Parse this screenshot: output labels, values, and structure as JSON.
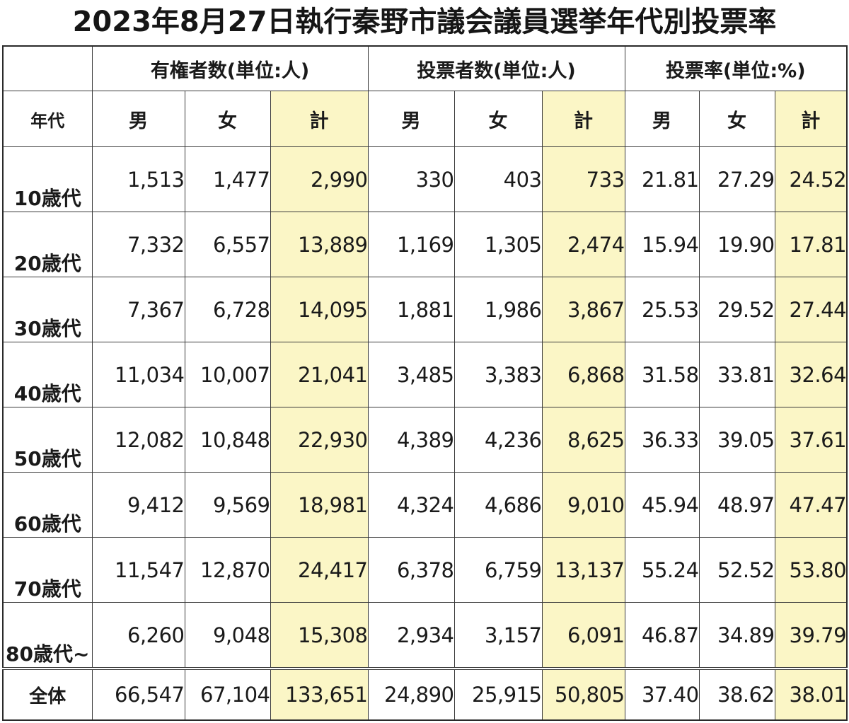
{
  "title": "2023年8月27日執行秦野市議会議員選挙年代別投票率",
  "colors": {
    "highlight": "#fbf6c6",
    "border": "#3a3a3a",
    "text": "#1a1a1a"
  },
  "header": {
    "groups": [
      "有権者数(単位:人)",
      "投票者数(単位:人)",
      "投票率(単位:%)"
    ],
    "age_label": "年代",
    "sub": [
      "男",
      "女",
      "計",
      "男",
      "女",
      "計",
      "男",
      "女",
      "計"
    ]
  },
  "rows": [
    {
      "age": "10歳代",
      "values": [
        "1,513",
        "1,477",
        "2,990",
        "330",
        "403",
        "733",
        "21.81",
        "27.29",
        "24.52"
      ]
    },
    {
      "age": "20歳代",
      "values": [
        "7,332",
        "6,557",
        "13,889",
        "1,169",
        "1,305",
        "2,474",
        "15.94",
        "19.90",
        "17.81"
      ]
    },
    {
      "age": "30歳代",
      "values": [
        "7,367",
        "6,728",
        "14,095",
        "1,881",
        "1,986",
        "3,867",
        "25.53",
        "29.52",
        "27.44"
      ]
    },
    {
      "age": "40歳代",
      "values": [
        "11,034",
        "10,007",
        "21,041",
        "3,485",
        "3,383",
        "6,868",
        "31.58",
        "33.81",
        "32.64"
      ]
    },
    {
      "age": "50歳代",
      "values": [
        "12,082",
        "10,848",
        "22,930",
        "4,389",
        "4,236",
        "8,625",
        "36.33",
        "39.05",
        "37.61"
      ]
    },
    {
      "age": "60歳代",
      "values": [
        "9,412",
        "9,569",
        "18,981",
        "4,324",
        "4,686",
        "9,010",
        "45.94",
        "48.97",
        "47.47"
      ]
    },
    {
      "age": "70歳代",
      "values": [
        "11,547",
        "12,870",
        "24,417",
        "6,378",
        "6,759",
        "13,137",
        "55.24",
        "52.52",
        "53.80"
      ]
    },
    {
      "age": "80歳代~",
      "values": [
        "6,260",
        "9,048",
        "15,308",
        "2,934",
        "3,157",
        "6,091",
        "46.87",
        "34.89",
        "39.79"
      ]
    }
  ],
  "total": {
    "age": "全体",
    "values": [
      "66,547",
      "67,104",
      "133,651",
      "24,890",
      "25,915",
      "50,805",
      "37.40",
      "38.62",
      "38.01"
    ]
  }
}
